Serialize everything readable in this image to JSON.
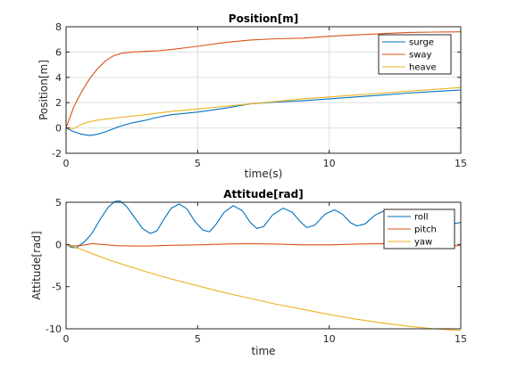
{
  "chart_data": [
    {
      "type": "line",
      "title": "Position[m]",
      "xlabel": "time(s)",
      "ylabel": "Position[m]",
      "xlim": [
        0,
        15
      ],
      "ylim": [
        -2,
        8
      ],
      "xticks": [
        0,
        5,
        10,
        15
      ],
      "yticks": [
        -2,
        0,
        2,
        4,
        6,
        8
      ],
      "grid": true,
      "legend": "top-right",
      "series": [
        {
          "name": "surge",
          "color": "#0072bd",
          "x": [
            0,
            0.3,
            0.6,
            0.9,
            1.2,
            1.5,
            2,
            2.5,
            3,
            3.5,
            4,
            5,
            6,
            7,
            8,
            9,
            10,
            11,
            12,
            13,
            14,
            15
          ],
          "y": [
            0,
            -0.3,
            -0.5,
            -0.6,
            -0.5,
            -0.3,
            0.1,
            0.4,
            0.6,
            0.85,
            1.05,
            1.25,
            1.55,
            1.9,
            2.05,
            2.15,
            2.3,
            2.45,
            2.6,
            2.75,
            2.88,
            3.0
          ]
        },
        {
          "name": "sway",
          "color": "#d95319",
          "x": [
            0,
            0.3,
            0.6,
            0.9,
            1.2,
            1.5,
            1.8,
            2.1,
            2.5,
            3,
            3.5,
            4,
            5,
            6,
            7,
            8,
            9,
            10,
            11,
            12,
            13,
            14,
            15
          ],
          "y": [
            0,
            1.7,
            2.9,
            3.9,
            4.7,
            5.3,
            5.7,
            5.9,
            6.0,
            6.05,
            6.1,
            6.2,
            6.45,
            6.75,
            6.95,
            7.05,
            7.1,
            7.25,
            7.35,
            7.45,
            7.55,
            7.58,
            7.6
          ]
        },
        {
          "name": "heave",
          "color": "#edb120",
          "x": [
            0,
            0.3,
            0.6,
            0.9,
            1.2,
            1.5,
            2,
            3,
            4,
            5,
            6,
            7,
            8,
            9,
            10,
            11,
            12,
            13,
            14,
            15
          ],
          "y": [
            0,
            -0.05,
            0.3,
            0.5,
            0.62,
            0.7,
            0.82,
            1.05,
            1.3,
            1.5,
            1.7,
            1.9,
            2.1,
            2.3,
            2.45,
            2.6,
            2.75,
            2.9,
            3.05,
            3.2
          ]
        }
      ]
    },
    {
      "type": "line",
      "title": "Attitude[rad]",
      "xlabel": "time",
      "ylabel": "Attitude[rad]",
      "xlim": [
        0,
        15
      ],
      "ylim": [
        -10,
        5
      ],
      "xticks": [
        0,
        5,
        10,
        15
      ],
      "yticks": [
        -10,
        -5,
        0,
        5
      ],
      "grid": false,
      "legend": "top-right",
      "series": [
        {
          "name": "roll",
          "color": "#0072bd",
          "x": [
            0,
            0.2,
            0.4,
            0.5,
            0.7,
            1.0,
            1.3,
            1.6,
            1.85,
            2.05,
            2.3,
            2.6,
            2.9,
            3.2,
            3.45,
            3.7,
            4.0,
            4.3,
            4.6,
            4.9,
            5.2,
            5.45,
            5.7,
            6.0,
            6.35,
            6.7,
            7.0,
            7.25,
            7.5,
            7.85,
            8.25,
            8.6,
            8.9,
            9.15,
            9.45,
            9.85,
            10.2,
            10.5,
            10.8,
            11.05,
            11.35,
            11.75,
            12.1,
            12.45,
            12.75,
            13.0,
            13.3,
            13.7,
            14.0,
            14.3,
            14.55,
            14.8,
            15.0
          ],
          "y": [
            0,
            -0.35,
            -0.4,
            -0.1,
            0.3,
            1.4,
            3.0,
            4.4,
            5.1,
            5.15,
            4.5,
            3.2,
            1.9,
            1.3,
            1.6,
            2.9,
            4.3,
            4.8,
            4.2,
            2.7,
            1.7,
            1.5,
            2.4,
            3.8,
            4.6,
            4.0,
            2.6,
            1.9,
            2.1,
            3.5,
            4.3,
            3.8,
            2.7,
            2.0,
            2.3,
            3.6,
            4.1,
            3.6,
            2.6,
            2.2,
            2.4,
            3.5,
            4.0,
            3.5,
            2.6,
            2.3,
            2.5,
            3.4,
            3.8,
            3.4,
            2.7,
            2.5,
            2.6
          ]
        },
        {
          "name": "pitch",
          "color": "#d95319",
          "x": [
            0,
            0.3,
            0.6,
            1.0,
            2,
            3,
            4,
            5,
            6,
            7,
            8,
            9,
            10,
            11,
            12,
            13,
            14,
            15
          ],
          "y": [
            0,
            -0.2,
            -0.1,
            0.1,
            -0.15,
            -0.2,
            -0.1,
            -0.05,
            0.05,
            0.1,
            0.05,
            -0.05,
            -0.05,
            0.05,
            0.1,
            0.05,
            -0.05,
            -0.15
          ]
        },
        {
          "name": "yaw",
          "color": "#edb120",
          "x": [
            0,
            0.5,
            1,
            1.5,
            2,
            3,
            4,
            5,
            6,
            7,
            8,
            9,
            10,
            11,
            12,
            13,
            14,
            15
          ],
          "y": [
            0,
            -0.5,
            -1.1,
            -1.7,
            -2.2,
            -3.2,
            -4.1,
            -4.9,
            -5.7,
            -6.4,
            -7.1,
            -7.7,
            -8.3,
            -8.85,
            -9.3,
            -9.7,
            -10.0,
            -10.2
          ]
        }
      ]
    }
  ]
}
